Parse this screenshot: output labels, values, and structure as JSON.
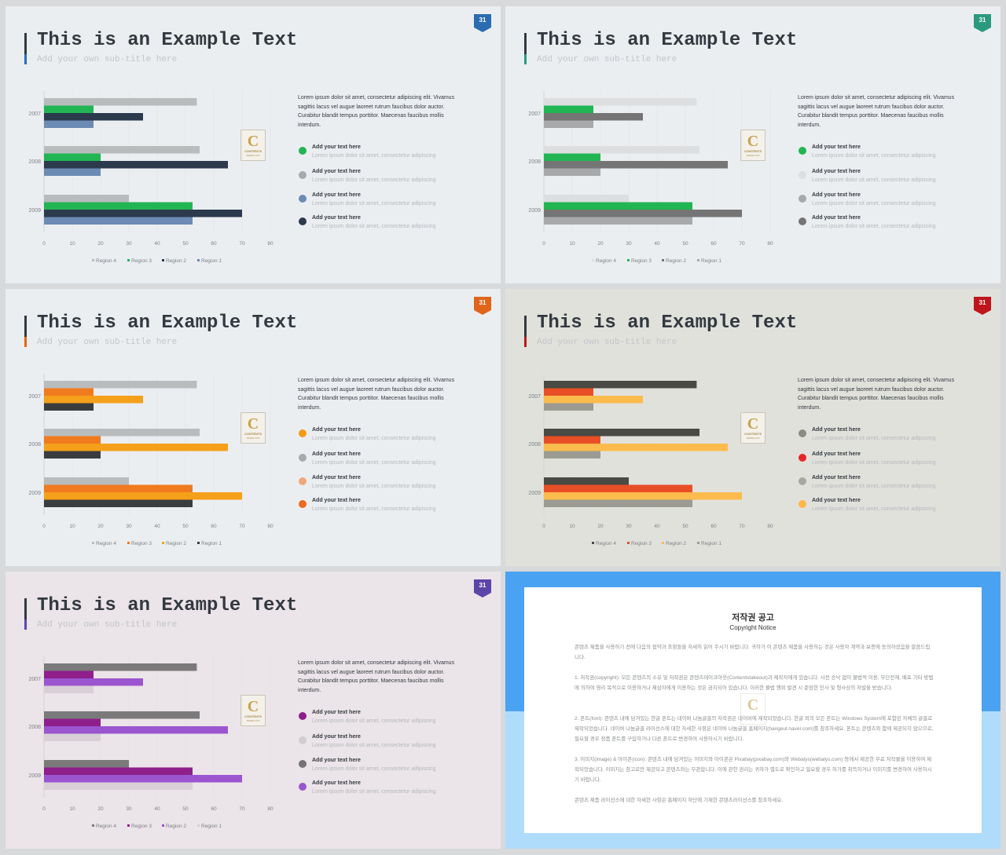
{
  "slides": [
    {
      "title": "This is an Example Text",
      "subtitle": "Add your own sub-title here",
      "page_number": "31",
      "accent": "#2b6cb0",
      "bg": "#ebeef1",
      "body": "Lorem ipsum dolor sit amet, consectetur adipiscing elit. Vivamus sagittis lacus vel augue laoreet rutrum faucibus dolor auctor. Curabitur blandit tempus porttitor. Maecenas faucibus mollis interdum.",
      "items": [
        {
          "heading": "Add your text here",
          "desc": "Lorem ipsum dolor sit amet, consectetur adipiscing",
          "color": "#22b553"
        },
        {
          "heading": "Add your text here",
          "desc": "Lorem ipsum dolor sit amet, consectetur adipiscing",
          "color": "#a7a9ab"
        },
        {
          "heading": "Add your text here",
          "desc": "Lorem ipsum dolor sit amet, consectetur adipiscing",
          "color": "#6c8bb4"
        },
        {
          "heading": "Add your text here",
          "desc": "Lorem ipsum dolor sit amet, consectetur adipiscing",
          "color": "#2b3a4d"
        }
      ],
      "chart_data": {
        "type": "bar",
        "orientation": "horizontal",
        "categories": [
          "2007",
          "2008",
          "2009"
        ],
        "xlim": [
          0,
          80
        ],
        "xticks": [
          "0",
          "10",
          "20",
          "30",
          "40",
          "50",
          "60",
          "70",
          "80"
        ],
        "legend_position": "bottom",
        "series": [
          {
            "name": "Region 4",
            "values": [
              54,
              55,
              30
            ],
            "color": "#b8bcbd"
          },
          {
            "name": "Region 3",
            "values": [
              17.5,
              20,
              52.5
            ],
            "color": "#22b553"
          },
          {
            "name": "Region 2",
            "values": [
              35,
              65,
              70
            ],
            "color": "#2b3a4d"
          },
          {
            "name": "Region 1",
            "values": [
              17.5,
              20,
              52.5
            ],
            "color": "#6c8bb4"
          }
        ]
      }
    },
    {
      "title": "This is an Example Text",
      "subtitle": "Add your own sub-title here",
      "page_number": "31",
      "accent": "#2a9a7e",
      "bg": "#ebeef1",
      "body": "Lorem ipsum dolor sit amet, consectetur adipiscing elit. Vivamus sagittis lacus vel augue laoreet rutrum faucibus dolor auctor. Curabitur blandit tempus porttitor. Maecenas faucibus mollis interdum.",
      "items": [
        {
          "heading": "Add your text here",
          "desc": "Lorem ipsum dolor sit amet, consectetur adipiscing",
          "color": "#22b553"
        },
        {
          "heading": "Add your text here",
          "desc": "Lorem ipsum dolor sit amet, consectetur adipiscing",
          "color": "#dcdee0"
        },
        {
          "heading": "Add your text here",
          "desc": "Lorem ipsum dolor sit amet, consectetur adipiscing",
          "color": "#a7a9ab"
        },
        {
          "heading": "Add your text here",
          "desc": "Lorem ipsum dolor sit amet, consectetur adipiscing",
          "color": "#757575"
        }
      ],
      "chart_data": {
        "type": "bar",
        "orientation": "horizontal",
        "categories": [
          "2007",
          "2008",
          "2009"
        ],
        "xlim": [
          0,
          80
        ],
        "xticks": [
          "0",
          "10",
          "20",
          "30",
          "40",
          "50",
          "60",
          "70",
          "80"
        ],
        "legend_position": "bottom",
        "series": [
          {
            "name": "Region 4",
            "values": [
              54,
              55,
              30
            ],
            "color": "#dcdee0"
          },
          {
            "name": "Region 3",
            "values": [
              17.5,
              20,
              52.5
            ],
            "color": "#22b553"
          },
          {
            "name": "Region 2",
            "values": [
              35,
              65,
              70
            ],
            "color": "#757575"
          },
          {
            "name": "Region 1",
            "values": [
              17.5,
              20,
              52.5
            ],
            "color": "#a7a9ab"
          }
        ]
      }
    },
    {
      "title": "This is an Example Text",
      "subtitle": "Add your own sub-title here",
      "page_number": "31",
      "accent": "#e0651a",
      "bg": "#ebeef1",
      "body": "Lorem ipsum dolor sit amet, consectetur adipiscing elit. Vivamus sagittis lacus vel augue laoreet rutrum faucibus dolor auctor. Curabitur blandit tempus porttitor. Maecenas faucibus mollis interdum.",
      "items": [
        {
          "heading": "Add your text here",
          "desc": "Lorem ipsum dolor sit amet, consectetur adipiscing",
          "color": "#f59a18"
        },
        {
          "heading": "Add your text here",
          "desc": "Lorem ipsum dolor sit amet, consectetur adipiscing",
          "color": "#a7a9ab"
        },
        {
          "heading": "Add your text here",
          "desc": "Lorem ipsum dolor sit amet, consectetur adipiscing",
          "color": "#f2a679"
        },
        {
          "heading": "Add your text here",
          "desc": "Lorem ipsum dolor sit amet, consectetur adipiscing",
          "color": "#ec6a1c"
        }
      ],
      "chart_data": {
        "type": "bar",
        "orientation": "horizontal",
        "categories": [
          "2007",
          "2008",
          "2009"
        ],
        "xlim": [
          0,
          80
        ],
        "xticks": [
          "0",
          "10",
          "20",
          "30",
          "40",
          "50",
          "60",
          "70",
          "80"
        ],
        "legend_position": "bottom",
        "series": [
          {
            "name": "Region 4",
            "values": [
              54,
              55,
              30
            ],
            "color": "#b8bcbd"
          },
          {
            "name": "Region 3",
            "values": [
              17.5,
              20,
              52.5
            ],
            "color": "#f07a1e"
          },
          {
            "name": "Region 2",
            "values": [
              35,
              65,
              70
            ],
            "color": "#f5a01a"
          },
          {
            "name": "Region 1",
            "values": [
              17.5,
              20,
              52.5
            ],
            "color": "#3a3d40"
          }
        ]
      }
    },
    {
      "title": "This is an Example Text",
      "subtitle": "Add your own sub-title here",
      "page_number": "31",
      "accent": "#c0161b",
      "bg": "#e1e1dc",
      "body": "Lorem ipsum dolor sit amet, consectetur adipiscing elit. Vivamus sagittis lacus vel augue laoreet rutrum faucibus dolor auctor. Curabitur blandit tempus porttitor. Maecenas faucibus mollis interdum.",
      "items": [
        {
          "heading": "Add your text here",
          "desc": "Lorem ipsum dolor sit amet, consectetur adipiscing",
          "color": "#8c8c84"
        },
        {
          "heading": "Add your text here",
          "desc": "Lorem ipsum dolor sit amet, consectetur adipiscing",
          "color": "#e3282b"
        },
        {
          "heading": "Add your text here",
          "desc": "Lorem ipsum dolor sit amet, consectetur adipiscing",
          "color": "#a8a8a2"
        },
        {
          "heading": "Add your text here",
          "desc": "Lorem ipsum dolor sit amet, consectetur adipiscing",
          "color": "#fbb84a"
        }
      ],
      "chart_data": {
        "type": "bar",
        "orientation": "horizontal",
        "categories": [
          "2007",
          "2008",
          "2009"
        ],
        "xlim": [
          0,
          80
        ],
        "xticks": [
          "0",
          "10",
          "20",
          "30",
          "40",
          "50",
          "60",
          "70",
          "80"
        ],
        "legend_position": "bottom",
        "series": [
          {
            "name": "Region 4",
            "values": [
              54,
              55,
              30
            ],
            "color": "#4a4a44"
          },
          {
            "name": "Region 3",
            "values": [
              17.5,
              20,
              52.5
            ],
            "color": "#e84f26"
          },
          {
            "name": "Region 2",
            "values": [
              35,
              65,
              70
            ],
            "color": "#fbbb4d"
          },
          {
            "name": "Region 1",
            "values": [
              17.5,
              20,
              52.5
            ],
            "color": "#9b9b93"
          }
        ]
      }
    },
    {
      "title": "This is an Example Text",
      "subtitle": "Add your own sub-title here",
      "page_number": "31",
      "accent": "#5c45a8",
      "bg": "#ebe4e8",
      "body": "Lorem ipsum dolor sit amet, consectetur adipiscing elit. Vivamus sagittis lacus vel augue laoreet rutrum faucibus dolor auctor. Curabitur blandit tempus porttitor. Maecenas faucibus mollis interdum.",
      "items": [
        {
          "heading": "Add your text here",
          "desc": "Lorem ipsum dolor sit amet, consectetur adipiscing",
          "color": "#8e1f8b"
        },
        {
          "heading": "Add your text here",
          "desc": "Lorem ipsum dolor sit amet, consectetur adipiscing",
          "color": "#d2ccd0"
        },
        {
          "heading": "Add your text here",
          "desc": "Lorem ipsum dolor sit amet, consectetur adipiscing",
          "color": "#747474"
        },
        {
          "heading": "Add your text here",
          "desc": "Lorem ipsum dolor sit amet, consectetur adipiscing",
          "color": "#9b55cf"
        }
      ],
      "chart_data": {
        "type": "bar",
        "orientation": "horizontal",
        "categories": [
          "2007",
          "2008",
          "2009"
        ],
        "xlim": [
          0,
          80
        ],
        "xticks": [
          "0",
          "10",
          "20",
          "30",
          "40",
          "50",
          "60",
          "70",
          "80"
        ],
        "legend_position": "bottom",
        "series": [
          {
            "name": "Region 4",
            "values": [
              54,
              55,
              30
            ],
            "color": "#7a7a7a"
          },
          {
            "name": "Region 3",
            "values": [
              17.5,
              20,
              52.5
            ],
            "color": "#8e1f8b"
          },
          {
            "name": "Region 2",
            "values": [
              35,
              65,
              70
            ],
            "color": "#9b55cf"
          },
          {
            "name": "Region 1",
            "values": [
              17.5,
              20,
              52.5
            ],
            "color": "#d8d0d6"
          }
        ]
      }
    }
  ],
  "logo": {
    "letter": "C",
    "word": "CONTENTS",
    "tag": "TRAKE OUT"
  },
  "notice": {
    "title": "저작권 공고",
    "subtitle": "Copyright Notice",
    "colors": {
      "band_top": "#4aa2f3",
      "band_bottom": "#b0dcfb"
    },
    "paragraphs": [
      "콘텐츠 제품을 사용하기 전에 다음의 협약과 조항들을 자세히 읽어 주시기 바랍니다. 귀하가 이 콘텐츠 제품을 사용하는 것은 사용자 계약과 보증에 동의하셨음을 말씀드립니다.",
      "1. 저작권(copyright): 모든 콘텐츠의 소유 및 저작권은 콘텐츠테이크아웃(Contentstakeout)과 제작자에게 있습니다. 사전 승낙 없이 불법적 이용, 무단전재, 배포 기타 방법에 의하여 영리 목적으로 이용하거나 제삼자에게 이용하는 것은 금지되어 있습니다. 이러한 불법 행위 발견 시 준엄한 민사 및 형사상의 처벌을 받습니다.",
      "2. 폰트(font): 콘텐츠 내에 담겨있는 한글 폰트는 네이버 나눔글꼴의 저작권은 네이버에 제작되었습니다. 한글 외의 모든 폰트는 Windows System에 포함된 자체의 글꼴로 제작되었습니다. 네이버 나눔글꼴 라이선스에 대한 자세한 사항은 네이버 나눔글꼴 홈페이지(hangeul.naver.com)를 참조하세요. 폰트는 콘텐츠와 함께 제공되지 않으므로, 필요할 경우 정품 폰트를 구입하거나 다른 폰트로 변경하여 사용하시기 바랍니다.",
      "3. 이미지(image) & 아이콘(icon): 콘텐츠 내에 담겨있는 이미지와 아이콘은 Pixabay(pixabay.com)와 Webalys(webalys.com) 등에서 제공한 무료 저작물을 이용하여 제작되었습니다. 이미지는 참고로만 제공되고 콘텐츠와는 무관합니다. 이에 관한 권리는 귀하가 별도로 확인하고 필요할 경우 허가를 취득하거나 이미지를 변경하여 사용하시기 바랍니다.",
      "콘텐츠 제품 라이선스에 대한 자세한 사항은 홈페이지 하단에 기재한 콘텐츠라이선스를 참조하세요."
    ]
  }
}
